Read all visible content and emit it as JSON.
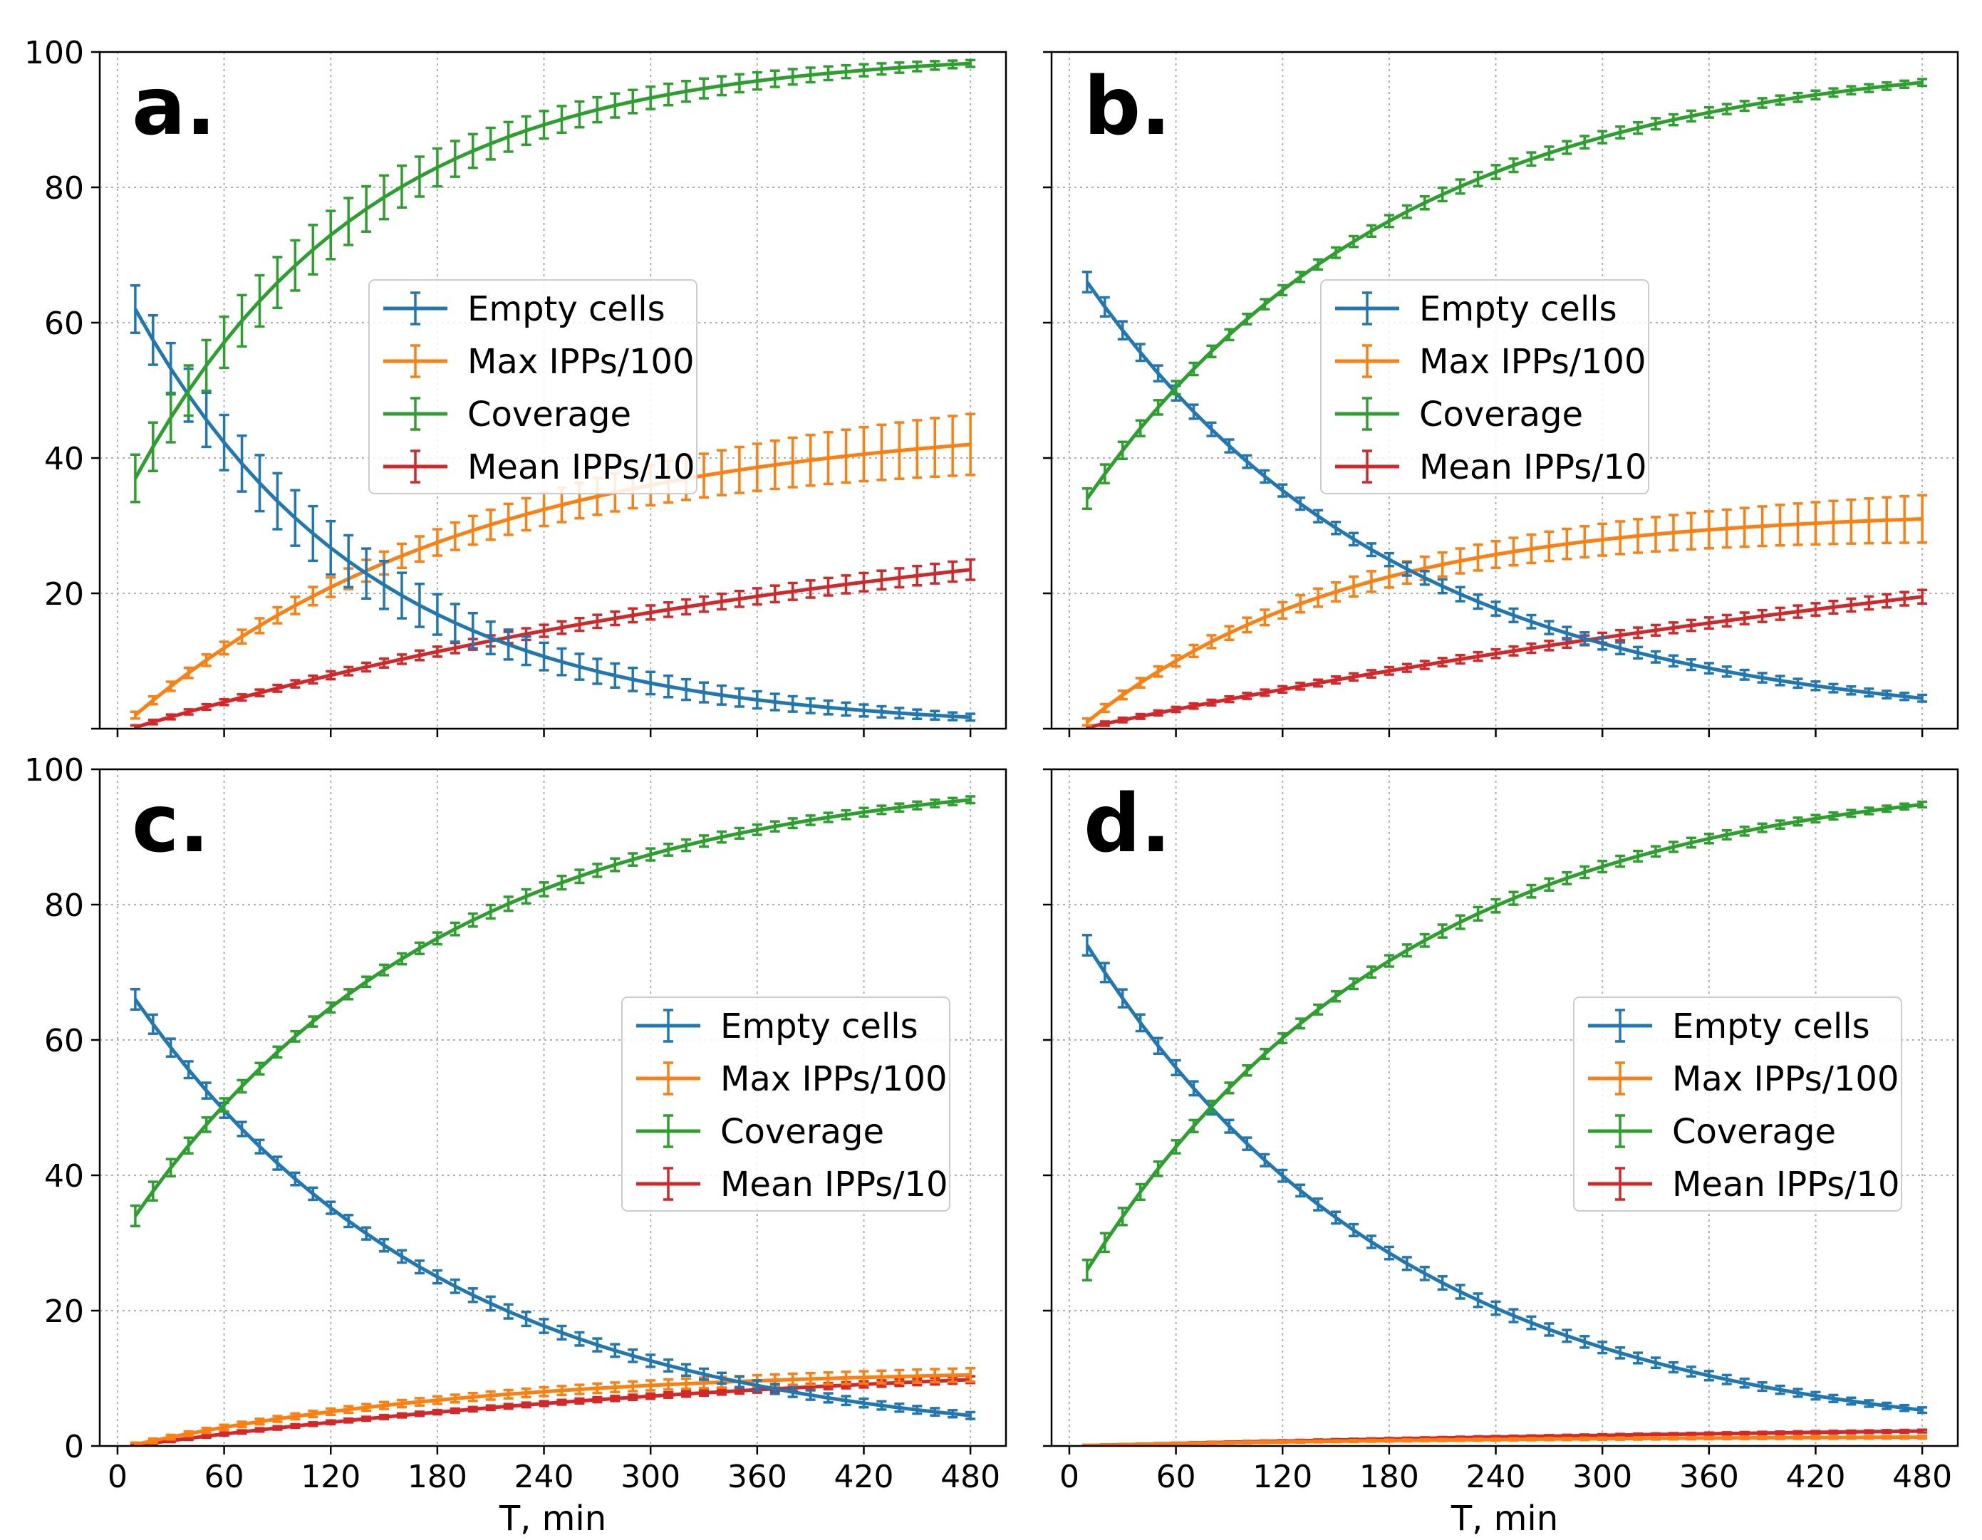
{
  "figure": {
    "xlabel": "T, min"
  },
  "colors": {
    "empty": "#1f77b4",
    "max": "#ff7f0e",
    "coverage": "#2ca02c",
    "mean": "#d62728",
    "grid": "#b0b0b0"
  },
  "chart_data": [
    {
      "type": "line",
      "panel": "a.",
      "xlabel": "",
      "xlim": [
        -10,
        500
      ],
      "ylim": [
        0,
        100
      ],
      "xticks": [
        0,
        60,
        120,
        180,
        240,
        300,
        360,
        420,
        480
      ],
      "yticks": [
        20,
        40,
        60,
        80,
        100
      ],
      "legend_position": "center",
      "x_range": [
        10,
        480,
        10
      ],
      "series": [
        {
          "key": "empty",
          "name": "Empty cells",
          "model": "exp",
          "start": 62,
          "end": 1.7,
          "err_start": 3.5,
          "err_end": 0.5,
          "err_peak": 5.0
        },
        {
          "key": "max",
          "name": "Max IPPs/100",
          "model": "sat",
          "start": 2,
          "end": 42,
          "curv": 0.6,
          "err_start": 0.5,
          "err_end": 4.5
        },
        {
          "key": "coverage",
          "name": "Coverage",
          "model": "cov",
          "start": 37,
          "end": 98.3,
          "err_start": 3.5,
          "err_end": 0.5,
          "err_peak": 4.5
        },
        {
          "key": "mean",
          "name": "Mean IPPs/10",
          "model": "sat",
          "start": 0.2,
          "end": 23.5,
          "curv": 0.25,
          "err_start": 0.3,
          "err_end": 1.5
        }
      ]
    },
    {
      "type": "line",
      "panel": "b.",
      "xlabel": "",
      "xlim": [
        -10,
        500
      ],
      "ylim": [
        0,
        100
      ],
      "xticks": [
        0,
        60,
        120,
        180,
        240,
        300,
        360,
        420,
        480
      ],
      "yticks": [],
      "legend_position": "center",
      "x_range": [
        10,
        480,
        10
      ],
      "series": [
        {
          "key": "empty",
          "name": "Empty cells",
          "model": "exp",
          "start": 66,
          "end": 4.5,
          "err_start": 1.5,
          "err_end": 0.5,
          "err_peak": 1.0
        },
        {
          "key": "max",
          "name": "Max IPPs/100",
          "model": "sat",
          "start": 1,
          "end": 31,
          "curv": 0.8,
          "err_start": 0.5,
          "err_end": 3.5
        },
        {
          "key": "coverage",
          "name": "Coverage",
          "model": "cov",
          "start": 34,
          "end": 95.5,
          "err_start": 1.5,
          "err_end": 0.5,
          "err_peak": 0.8
        },
        {
          "key": "mean",
          "name": "Mean IPPs/10",
          "model": "sat",
          "start": 0.2,
          "end": 19.5,
          "curv": 0.15,
          "err_start": 0.3,
          "err_end": 1.0
        }
      ]
    },
    {
      "type": "line",
      "panel": "c.",
      "xlabel": "T, min",
      "xlim": [
        -10,
        500
      ],
      "ylim": [
        0,
        100
      ],
      "xticks": [
        0,
        60,
        120,
        180,
        240,
        300,
        360,
        420,
        480
      ],
      "yticks": [
        0,
        20,
        40,
        60,
        80,
        100
      ],
      "legend_position": "center-right",
      "x_range": [
        10,
        480,
        10
      ],
      "series": [
        {
          "key": "empty",
          "name": "Empty cells",
          "model": "exp",
          "start": 66,
          "end": 4.5,
          "err_start": 1.5,
          "err_end": 0.5,
          "err_peak": 1.0
        },
        {
          "key": "max",
          "name": "Max IPPs/100",
          "model": "sat",
          "start": 0.2,
          "end": 10.5,
          "curv": 0.6,
          "err_start": 0.3,
          "err_end": 1.0
        },
        {
          "key": "coverage",
          "name": "Coverage",
          "model": "cov",
          "start": 34,
          "end": 95.5,
          "err_start": 1.5,
          "err_end": 0.5,
          "err_peak": 0.8
        },
        {
          "key": "mean",
          "name": "Mean IPPs/10",
          "model": "sat",
          "start": 0.1,
          "end": 9.8,
          "curv": 0.3,
          "err_start": 0.2,
          "err_end": 0.5
        }
      ]
    },
    {
      "type": "line",
      "panel": "d.",
      "xlabel": "T, min",
      "xlim": [
        -10,
        500
      ],
      "ylim": [
        0,
        100
      ],
      "xticks": [
        0,
        60,
        120,
        180,
        240,
        300,
        360,
        420,
        480
      ],
      "yticks": [],
      "legend_position": "center-right",
      "x_range": [
        10,
        480,
        10
      ],
      "series": [
        {
          "key": "empty",
          "name": "Empty cells",
          "model": "exp",
          "start": 74,
          "end": 5.3,
          "err_start": 1.5,
          "err_end": 0.4,
          "err_peak": 1.0
        },
        {
          "key": "max",
          "name": "Max IPPs/100",
          "model": "sat",
          "start": 0.05,
          "end": 1.3,
          "curv": 0.5,
          "err_start": 0.1,
          "err_end": 0.2
        },
        {
          "key": "coverage",
          "name": "Coverage",
          "model": "cov",
          "start": 26,
          "end": 94.8,
          "err_start": 1.5,
          "err_end": 0.4,
          "err_peak": 0.8
        },
        {
          "key": "mean",
          "name": "Mean IPPs/10",
          "model": "sat",
          "start": 0.05,
          "end": 2.2,
          "curv": 0.2,
          "err_start": 0.1,
          "err_end": 0.2
        }
      ]
    }
  ]
}
